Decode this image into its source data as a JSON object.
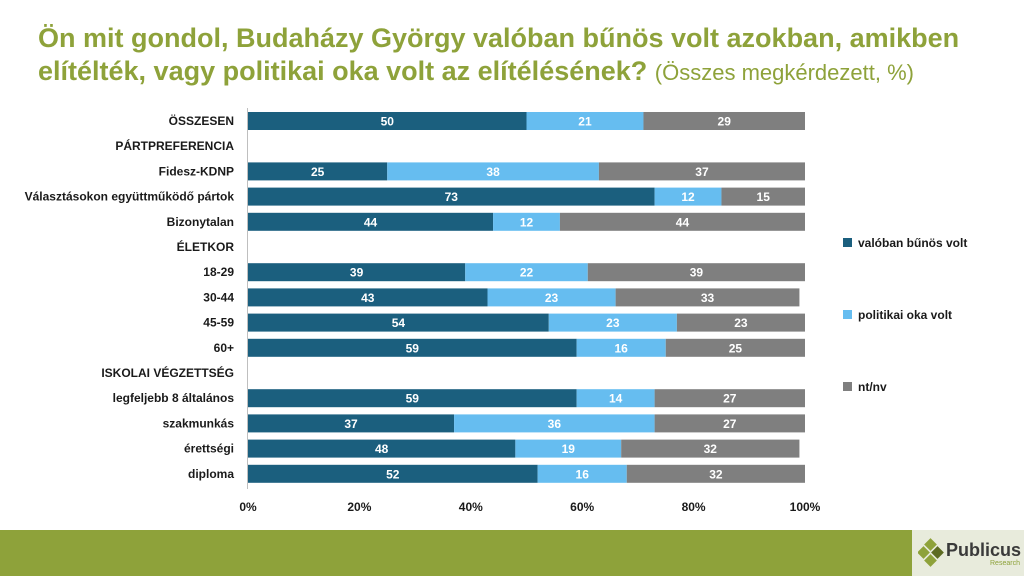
{
  "title": {
    "main": "Ön mit gondol, Budaházy György valóban bűnös volt azokban, amikben elítélték, vagy politikai oka volt az elítélésének?",
    "sub": "(Összes megkérdezett, %)"
  },
  "logo": {
    "name": "Publicus",
    "tagline": "Research"
  },
  "chart_data": {
    "type": "bar",
    "orientation": "horizontal",
    "stacked": true,
    "xlim": [
      0,
      100
    ],
    "x_ticks": [
      "0%",
      "20%",
      "40%",
      "60%",
      "80%",
      "100%"
    ],
    "legend_position": "right",
    "categories": [
      "ÖSSZESEN",
      "PÁRTPREFERENCIA",
      "Fidesz-KDNP",
      "Választásokon együttműködő pártok",
      "Bizonytalan",
      "ÉLETKOR",
      "18-29",
      "30-44",
      "45-59",
      "60+",
      "ISKOLAI VÉGZETTSÉG",
      "legfeljebb 8 általános",
      "szakmunkás",
      "érettségi",
      "diploma"
    ],
    "series": [
      {
        "name": "valóban bűnös volt",
        "color": "#1b5f7e",
        "values": [
          50,
          null,
          25,
          73,
          44,
          null,
          39,
          43,
          54,
          59,
          null,
          59,
          37,
          48,
          52
        ]
      },
      {
        "name": "politikai oka volt",
        "color": "#66bdf0",
        "values": [
          21,
          null,
          38,
          12,
          12,
          null,
          22,
          23,
          23,
          16,
          null,
          14,
          36,
          19,
          16
        ]
      },
      {
        "name": "nt/nv",
        "color": "#7f7f7f",
        "values": [
          29,
          null,
          37,
          15,
          44,
          null,
          39,
          33,
          23,
          25,
          null,
          27,
          27,
          32,
          32
        ]
      }
    ]
  }
}
